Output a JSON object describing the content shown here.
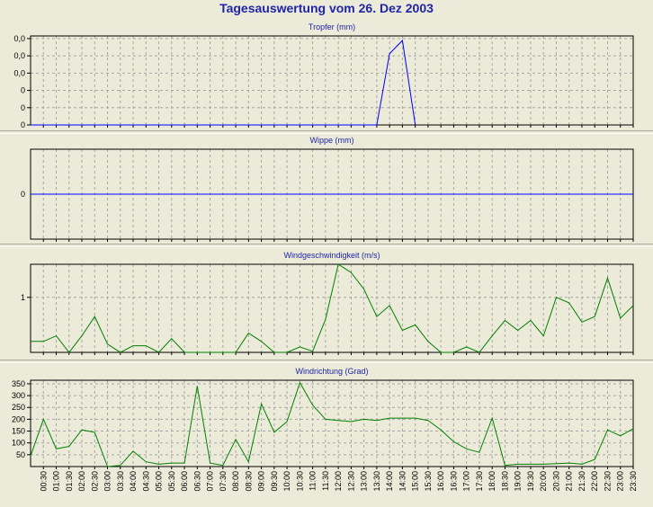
{
  "title": "Tagesauswertung vom 26. Dez 2003",
  "colors": {
    "title": "#1f24a8",
    "blue_line": "#0000ff",
    "green_line": "#008000",
    "grid": "#a6a6a6",
    "plot_bg": "#ecead9"
  },
  "time_labels": [
    "00:30",
    "01:00",
    "01:30",
    "02:00",
    "02:30",
    "03:00",
    "03:30",
    "04:00",
    "04:30",
    "05:00",
    "05:30",
    "06:00",
    "06:30",
    "07:00",
    "07:30",
    "08:00",
    "08:30",
    "09:00",
    "09:30",
    "10:00",
    "10:30",
    "11:00",
    "11:30",
    "12:00",
    "12:30",
    "13:00",
    "13:30",
    "14:00",
    "14:30",
    "15:00",
    "15:30",
    "16:00",
    "16:30",
    "17:00",
    "17:30",
    "18:00",
    "18:30",
    "19:00",
    "19:30",
    "20:00",
    "20:30",
    "21:00",
    "21:30",
    "22:00",
    "22:30",
    "23:00",
    "23:30"
  ],
  "chart_data": [
    {
      "type": "line",
      "title": "Tropfer (mm)",
      "x": [
        0,
        0.5,
        1,
        1.5,
        2,
        2.5,
        3,
        3.5,
        4,
        4.5,
        5,
        5.5,
        6,
        6.5,
        7,
        7.5,
        8,
        8.5,
        9,
        9.5,
        10,
        10.5,
        11,
        11.5,
        12,
        12.5,
        13,
        13.5,
        14,
        14.5,
        15,
        15.5,
        16,
        16.5,
        17,
        17.5,
        18,
        18.5,
        19,
        19.5,
        20,
        20.5,
        21,
        21.5,
        22,
        22.5,
        23,
        23.5
      ],
      "values": [
        0,
        0,
        0,
        0,
        0,
        0,
        0,
        0,
        0,
        0,
        0,
        0,
        0,
        0,
        0,
        0,
        0,
        0,
        0,
        0,
        0,
        0,
        0,
        0,
        0,
        0,
        0,
        0,
        0.08,
        0.095,
        0,
        null,
        null,
        null,
        null,
        null,
        null,
        null,
        null,
        null,
        null,
        null,
        null,
        null,
        null,
        null,
        null,
        null
      ],
      "ytick_labels": [
        "0",
        "0",
        "0",
        "0,0",
        "0,0",
        "0,0"
      ],
      "ylim": [
        0,
        0.1
      ],
      "color": "#0000ff",
      "grid": true
    },
    {
      "type": "line",
      "title": "Wippe (mm)",
      "x": [
        0,
        23.5
      ],
      "values": [
        0,
        0
      ],
      "ytick_labels": [
        "0"
      ],
      "ylim": [
        -1,
        1
      ],
      "color": "#0000ff",
      "grid": true
    },
    {
      "type": "line",
      "title": "Windgeschwindigkeit (m/s)",
      "x": [
        0,
        0.5,
        1,
        1.5,
        2,
        2.5,
        3,
        3.5,
        4,
        4.5,
        5,
        5.5,
        6,
        6.5,
        7,
        7.5,
        8,
        8.5,
        9,
        9.5,
        10,
        10.5,
        11,
        11.5,
        12,
        12.5,
        13,
        13.5,
        14,
        14.5,
        15,
        15.5,
        16,
        16.5,
        17,
        17.5,
        18,
        18.5,
        19,
        19.5,
        20,
        20.5,
        21,
        21.5,
        22,
        22.5,
        23,
        23.5
      ],
      "values": [
        0.2,
        0.2,
        0.3,
        0.0,
        0.3,
        0.65,
        0.15,
        0.0,
        0.12,
        0.12,
        0.0,
        0.25,
        0.0,
        0.0,
        0.0,
        0.0,
        0.0,
        0.35,
        0.2,
        0.0,
        0.0,
        0.1,
        0.02,
        0.6,
        1.6,
        1.45,
        1.15,
        0.65,
        0.85,
        0.4,
        0.5,
        0.2,
        0.0,
        0.0,
        0.1,
        0.0,
        0.3,
        0.58,
        0.4,
        0.58,
        0.3,
        1.0,
        0.9,
        0.55,
        0.65,
        1.35,
        0.62,
        0.85
      ],
      "yticks": [
        1
      ],
      "ylim": [
        0,
        1.6
      ],
      "color": "#008000",
      "grid": true
    },
    {
      "type": "line",
      "title": "Windrichtung (Grad)",
      "x": [
        0,
        0.5,
        1,
        1.5,
        2,
        2.5,
        3,
        3.5,
        4,
        4.5,
        5,
        5.5,
        6,
        6.5,
        7,
        7.5,
        8,
        8.5,
        9,
        9.5,
        10,
        10.5,
        11,
        11.5,
        12,
        12.5,
        13,
        13.5,
        14,
        14.5,
        15,
        15.5,
        16,
        16.5,
        17,
        17.5,
        18,
        18.5,
        19,
        19.5,
        20,
        20.5,
        21,
        21.5,
        22,
        22.5,
        23,
        23.5
      ],
      "values": [
        45,
        200,
        75,
        85,
        155,
        145,
        0,
        5,
        65,
        20,
        10,
        15,
        15,
        340,
        15,
        5,
        115,
        20,
        265,
        145,
        190,
        355,
        260,
        200,
        195,
        190,
        200,
        195,
        205,
        205,
        205,
        195,
        155,
        105,
        75,
        60,
        205,
        5,
        10,
        10,
        10,
        12,
        15,
        10,
        30,
        155,
        130,
        160
      ],
      "yticks": [
        50,
        100,
        150,
        200,
        250,
        300,
        350
      ],
      "ylim": [
        0,
        365
      ],
      "color": "#008000",
      "grid": true
    }
  ]
}
